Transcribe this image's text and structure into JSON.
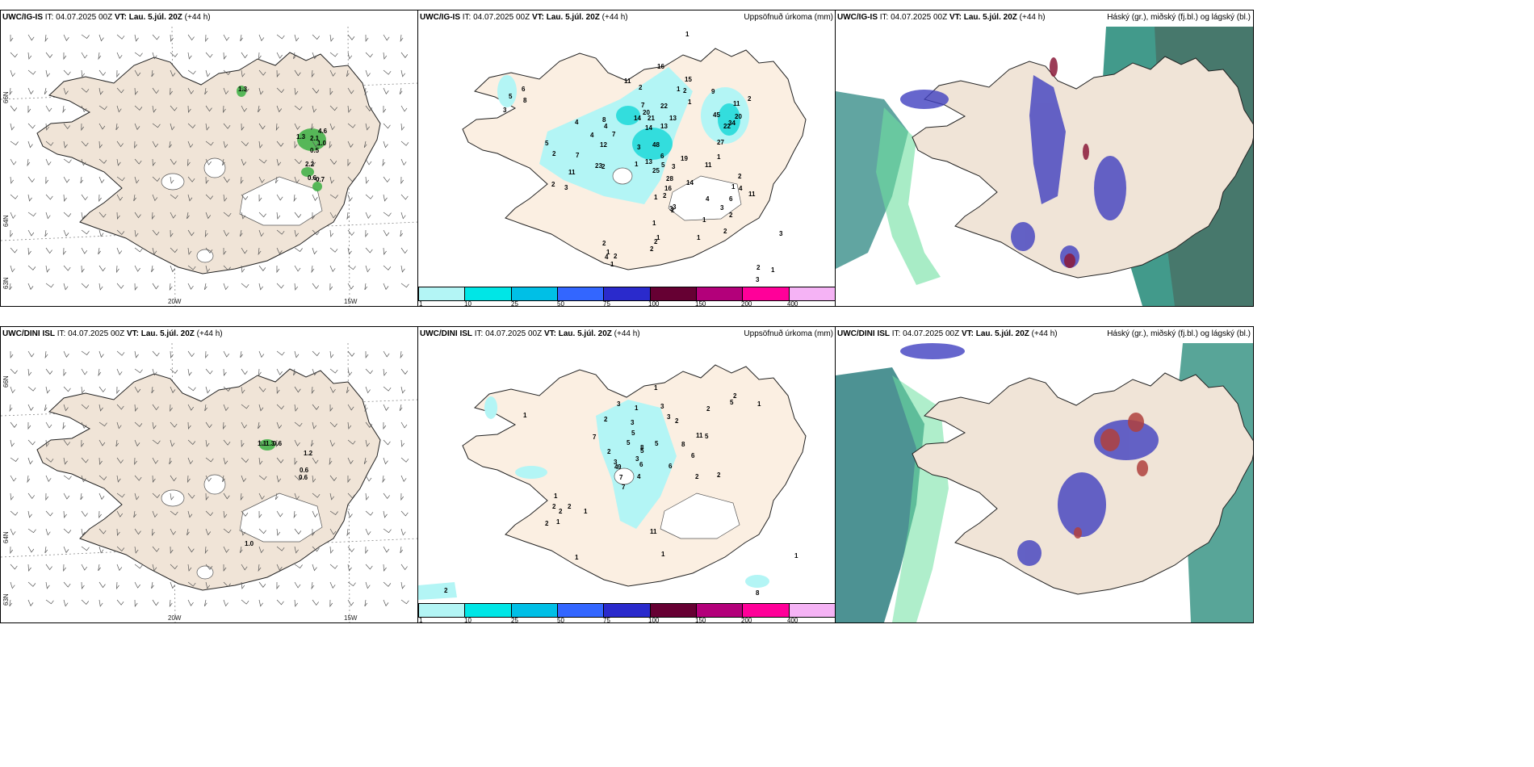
{
  "panels": {
    "p1": {
      "model": "UWC/IG-IS",
      "it_label": "IT:",
      "it": "04.07.2025 00Z",
      "vt_label": "VT:",
      "vt": "Lau. 5.júl. 20Z",
      "lead": "(+44 h)"
    },
    "p2": {
      "model": "UWC/IG-IS",
      "it_label": "IT:",
      "it": "04.07.2025 00Z",
      "vt_label": "VT:",
      "vt": "Lau. 5.júl. 20Z",
      "lead": "(+44 h)",
      "right": "Uppsöfnuð úrkoma (mm)"
    },
    "p3": {
      "model": "UWC/IG-IS",
      "it_label": "IT:",
      "it": "04.07.2025 00Z",
      "vt_label": "VT:",
      "vt": "Lau. 5.júl. 20Z",
      "lead": "(+44 h)",
      "right": "Háský (gr.), miðský (fj.bl.) og lágský (bl.)"
    },
    "p4": {
      "model": "UWC/DINI ISL",
      "it_label": "IT:",
      "it": "04.07.2025 00Z",
      "vt_label": "VT:",
      "vt": "Lau. 5.júl. 20Z",
      "lead": "(+44 h)"
    },
    "p5": {
      "model": "UWC/DINI ISL",
      "it_label": "IT:",
      "it": "04.07.2025 00Z",
      "vt_label": "VT:",
      "vt": "Lau. 5.júl. 20Z",
      "lead": "(+44 h)",
      "right": "Uppsöfnuð úrkoma (mm)"
    },
    "p6": {
      "model": "UWC/DINI ISL",
      "it_label": "IT:",
      "it": "04.07.2025 00Z",
      "vt_label": "VT:",
      "vt": "Lau. 5.júl. 20Z",
      "lead": "(+44 h)",
      "right": "Háský (gr.), miðský (fj.bl.) og lágský (bl.)"
    }
  },
  "axes": {
    "lon_20": "20W",
    "lon_15": "15W",
    "lat_66": "66N",
    "lat_64": "64N",
    "lat_63": "63N"
  },
  "colorbar": {
    "ticks": [
      "1",
      "10",
      "25",
      "50",
      "75",
      "100",
      "150",
      "200",
      "400"
    ],
    "colors": [
      "#b3f5f5",
      "#00e6e6",
      "#00bfe6",
      "#3366ff",
      "#2a2acc",
      "#660033",
      "#b3007a",
      "#ff0099",
      "#f5b3f5"
    ]
  },
  "colors": {
    "land": "#f0e4d7",
    "land_precip": "#fbefe2",
    "precip_light": "#b3f5f5",
    "precip_mid": "#33dddd"
  },
  "values": {
    "p1": [
      "1.3",
      "4.6",
      "2.1",
      "1.0",
      "0.5",
      "2.2",
      "0.6",
      "0.7",
      "1.3"
    ],
    "p2": [
      "1",
      "2",
      "11",
      "16",
      "2",
      "1",
      "15",
      "9",
      "6",
      "8",
      "7",
      "11",
      "5",
      "20",
      "22",
      "2",
      "3",
      "1",
      "8",
      "14",
      "21",
      "13",
      "45",
      "4",
      "4",
      "4",
      "12",
      "7",
      "3",
      "22",
      "14",
      "13",
      "20",
      "34",
      "5",
      "2",
      "7",
      "23",
      "48",
      "19",
      "1",
      "11",
      "27",
      "6",
      "11",
      "2",
      "1",
      "5",
      "25",
      "28",
      "13",
      "3",
      "2",
      "1",
      "2",
      "3",
      "4",
      "11",
      "6",
      "4",
      "16",
      "14",
      "1",
      "2",
      "2",
      "1",
      "3",
      "3",
      "2",
      "1",
      "3",
      "2",
      "1",
      "2",
      "1",
      "2",
      "2",
      "4",
      "1",
      "2",
      "1",
      "2",
      "1",
      "3",
      "3",
      "5"
    ],
    "p4": [
      "1.1",
      "1.3",
      "0.6",
      "1.2",
      "0.6",
      "0.6",
      "1.0"
    ],
    "p5": [
      "1",
      "2",
      "1",
      "5",
      "3",
      "1",
      "2",
      "3",
      "1",
      "2",
      "3",
      "5",
      "2",
      "7",
      "3",
      "5",
      "8",
      "2",
      "3",
      "5",
      "11",
      "6",
      "4",
      "6",
      "5",
      "3",
      "8",
      "7",
      "4",
      "6",
      "2",
      "2",
      "5",
      "9",
      "7",
      "1",
      "2",
      "2",
      "2",
      "1",
      "1",
      "11",
      "2",
      "1",
      "1",
      "1",
      "2",
      "8"
    ]
  }
}
